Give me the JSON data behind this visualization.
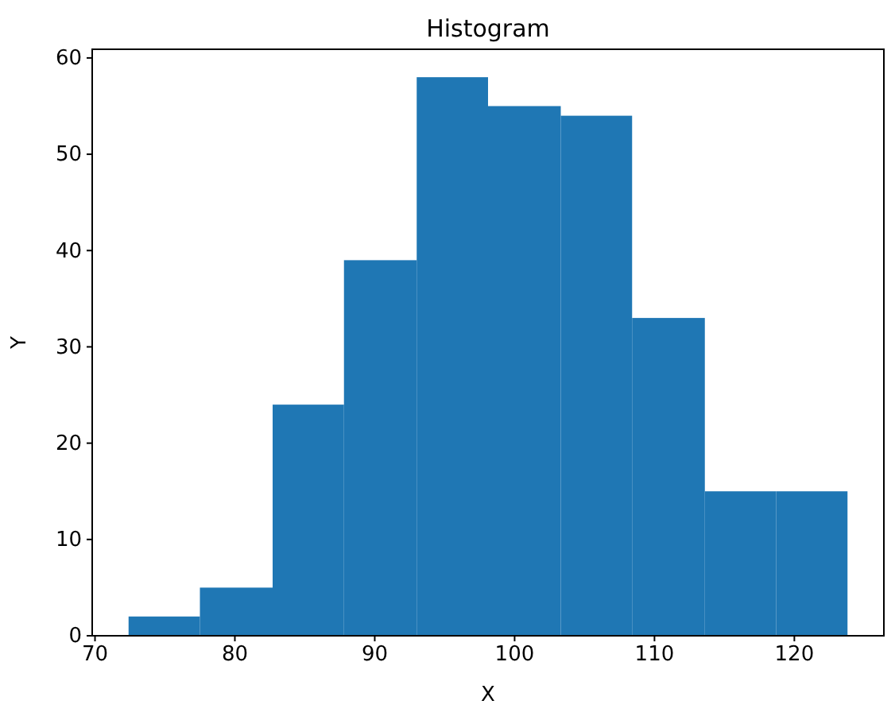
{
  "chart_data": {
    "type": "histogram",
    "title": "Histogram",
    "xlabel": "X",
    "ylabel": "Y",
    "bins": [
      72.4,
      77.5,
      82.7,
      87.8,
      93.0,
      98.1,
      103.3,
      108.4,
      113.6,
      118.7,
      123.8
    ],
    "values": [
      2,
      5,
      24,
      39,
      58,
      55,
      54,
      33,
      15,
      15
    ],
    "color": "#1f77b4",
    "xlim": [
      69.8,
      126.4
    ],
    "xticks": [
      70,
      80,
      90,
      100,
      110,
      120
    ],
    "ylim": [
      0,
      60.9
    ],
    "yticks": [
      0,
      10,
      20,
      30,
      40,
      50,
      60
    ],
    "grid": false
  }
}
